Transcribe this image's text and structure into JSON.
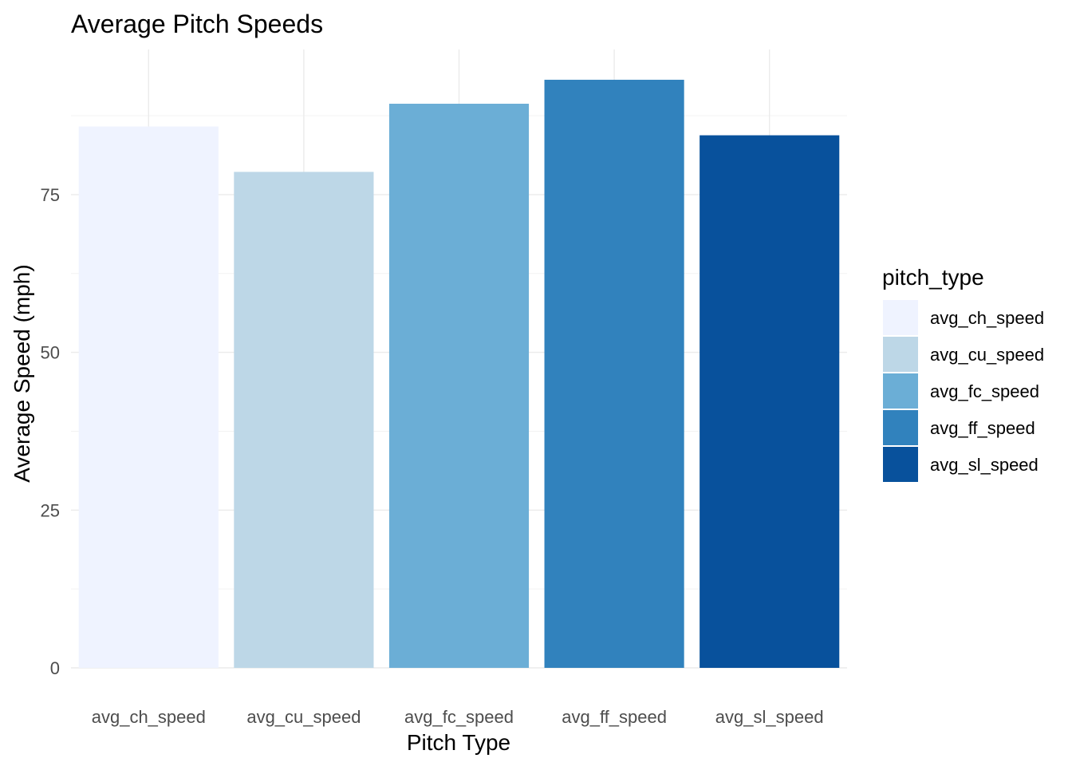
{
  "chart_data": {
    "type": "bar",
    "title": "Average Pitch Speeds",
    "xlabel": "Pitch Type",
    "ylabel": "Average Speed (mph)",
    "categories": [
      "avg_ch_speed",
      "avg_cu_speed",
      "avg_fc_speed",
      "avg_ff_speed",
      "avg_sl_speed"
    ],
    "values": [
      85.8,
      78.6,
      89.4,
      93.2,
      84.4
    ],
    "colors": [
      "#eff3ff",
      "#bdd7e7",
      "#6baed6",
      "#3182bd",
      "#08519c"
    ],
    "ylim": [
      0,
      98
    ],
    "yticks": [
      0,
      25,
      50,
      75
    ],
    "ytick_labels": [
      "0",
      "25",
      "50",
      "75"
    ],
    "grid": true,
    "legend": {
      "title": "pitch_type",
      "position": "right",
      "entries": [
        "avg_ch_speed",
        "avg_cu_speed",
        "avg_fc_speed",
        "avg_ff_speed",
        "avg_sl_speed"
      ]
    }
  }
}
